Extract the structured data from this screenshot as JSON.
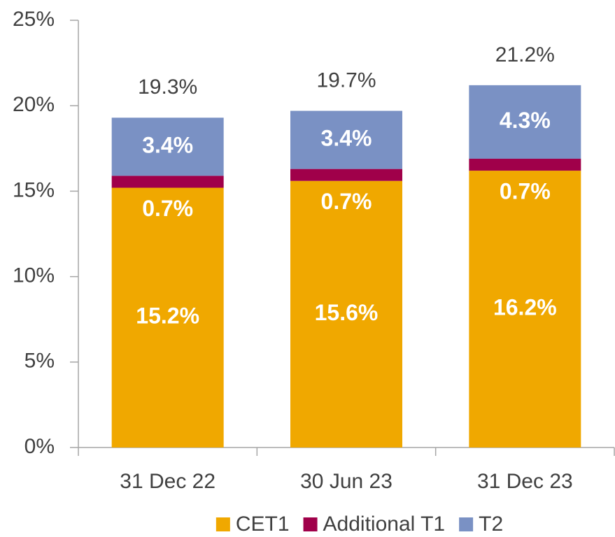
{
  "chart_data": {
    "type": "stacked_bar",
    "categories": [
      "31 Dec 22",
      "30 Jun 23",
      "31 Dec 23"
    ],
    "series": [
      {
        "name": "CET1",
        "color": "#f0a800",
        "values": [
          15.2,
          15.6,
          16.2
        ],
        "value_labels": [
          "15.2%",
          "15.6%",
          "16.2%"
        ]
      },
      {
        "name": "Additional T1",
        "color": "#a0004a",
        "values": [
          0.7,
          0.7,
          0.7
        ],
        "value_labels": [
          "0.7%",
          "0.7%",
          "0.7%"
        ]
      },
      {
        "name": "T2",
        "color": "#7a91c4",
        "values": [
          3.4,
          3.4,
          4.3
        ],
        "value_labels": [
          "3.4%",
          "3.4%",
          "4.3%"
        ]
      }
    ],
    "totals": [
      19.3,
      19.7,
      21.2
    ],
    "total_labels": [
      "19.3%",
      "19.7%",
      "21.2%"
    ],
    "ylim": [
      0,
      25
    ],
    "yticks": [
      {
        "value": 0,
        "label": "0%"
      },
      {
        "value": 5,
        "label": "5%"
      },
      {
        "value": 10,
        "label": "10%"
      },
      {
        "value": 15,
        "label": "15%"
      },
      {
        "value": 20,
        "label": "20%"
      },
      {
        "value": 25,
        "label": "25%"
      }
    ],
    "legend": "bottom"
  }
}
